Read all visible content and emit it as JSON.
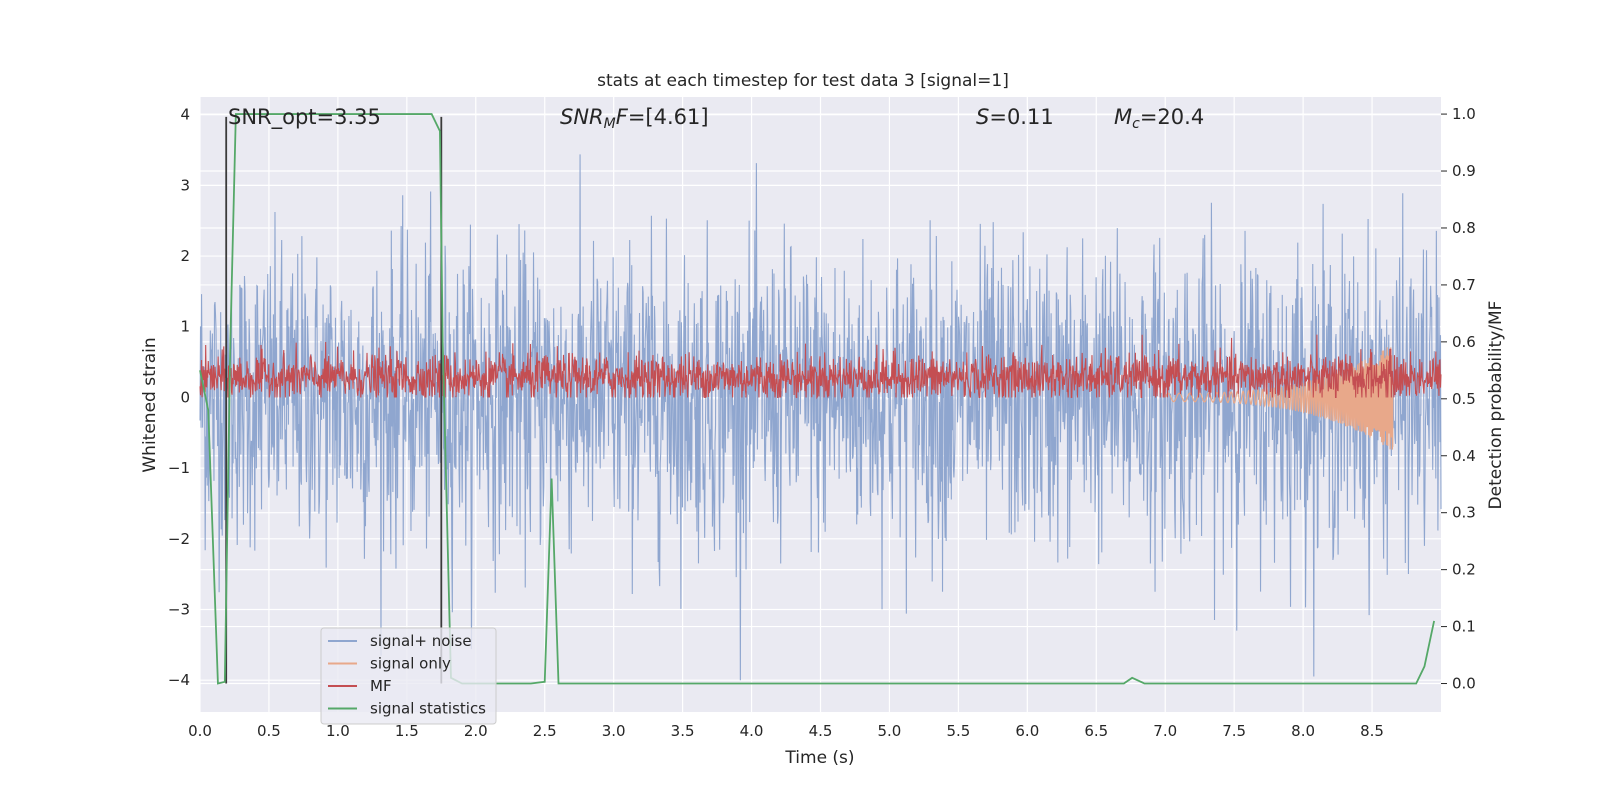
{
  "chart_data": {
    "type": "line",
    "title": "stats at each timestep for test data 3 [signal=1]",
    "xlabel": "Time (s)",
    "ylabel": "Whitened strain",
    "y2label": "Detection probability/MF",
    "xlim": [
      0,
      9
    ],
    "ylim": [
      -4.45,
      4.25
    ],
    "y2lim": [
      -0.05,
      1.03
    ],
    "xticks": [
      "0.0",
      "0.5",
      "1.0",
      "1.5",
      "2.0",
      "2.5",
      "3.0",
      "3.5",
      "4.0",
      "4.5",
      "5.0",
      "5.5",
      "6.0",
      "6.5",
      "7.0",
      "7.5",
      "8.0",
      "8.5"
    ],
    "yticks": [
      "−4",
      "−3",
      "−2",
      "−1",
      "0",
      "1",
      "2",
      "3",
      "4"
    ],
    "y2ticks": [
      "0.0",
      "0.1",
      "0.2",
      "0.3",
      "0.4",
      "0.5",
      "0.6",
      "0.7",
      "0.8",
      "0.9",
      "1.0"
    ],
    "grid": true,
    "legend_position": "lower-left",
    "annotations": {
      "snr_opt": "SNR_opt=3.35",
      "snr_mf_main": "SNR",
      "snr_mf_sub": "M",
      "snr_mf_rest": "F=[4.61]",
      "s_main": "S",
      "s_rest": "=0.11",
      "mc_main": "M",
      "mc_sub": "c",
      "mc_rest": "=20.4"
    },
    "vlines_x": [
      0.19,
      1.75
    ],
    "series": [
      {
        "name": "signal+ noise",
        "color": "#8fa6cf",
        "kind": "noise",
        "amplitude_range": [
          -4.0,
          3.8
        ]
      },
      {
        "name": "signal only",
        "color": "#e8a88a",
        "kind": "chirp",
        "x_start": 7.0,
        "x_end": 8.65,
        "min_value": -0.7
      },
      {
        "name": "MF",
        "color": "#c44e52",
        "kind": "mf",
        "range": [
          0.0,
          1.0
        ]
      },
      {
        "name": "signal statistics",
        "color": "#55a868",
        "axis": "right",
        "x": [
          0.0,
          0.06,
          0.13,
          0.18,
          0.22,
          0.26,
          0.3,
          0.8,
          1.2,
          1.68,
          1.74,
          1.76,
          1.82,
          1.9,
          2.4,
          2.5,
          2.55,
          2.6,
          2.65,
          3.0,
          4.0,
          5.0,
          6.0,
          6.7,
          6.76,
          6.85,
          7.0,
          8.0,
          8.82,
          8.88,
          8.95
        ],
        "y": [
          0.55,
          0.48,
          0.0,
          0.003,
          0.6,
          1.0,
          1.0,
          1.0,
          1.0,
          1.0,
          0.97,
          0.6,
          0.01,
          0.0,
          0.0,
          0.003,
          0.36,
          0.0,
          0.0,
          0.0,
          0.0,
          0.0,
          0.0,
          0.0,
          0.01,
          0.0,
          0.0,
          0.0,
          0.0,
          0.03,
          0.11
        ]
      }
    ]
  },
  "colors": {
    "plot_bg": "#eaeaf2",
    "grid": "#ffffff",
    "noise": "#8fa6cf",
    "signal_only": "#e8a88a",
    "mf": "#c44e52",
    "stats": "#55a868",
    "vline": "#3b3b3b"
  }
}
